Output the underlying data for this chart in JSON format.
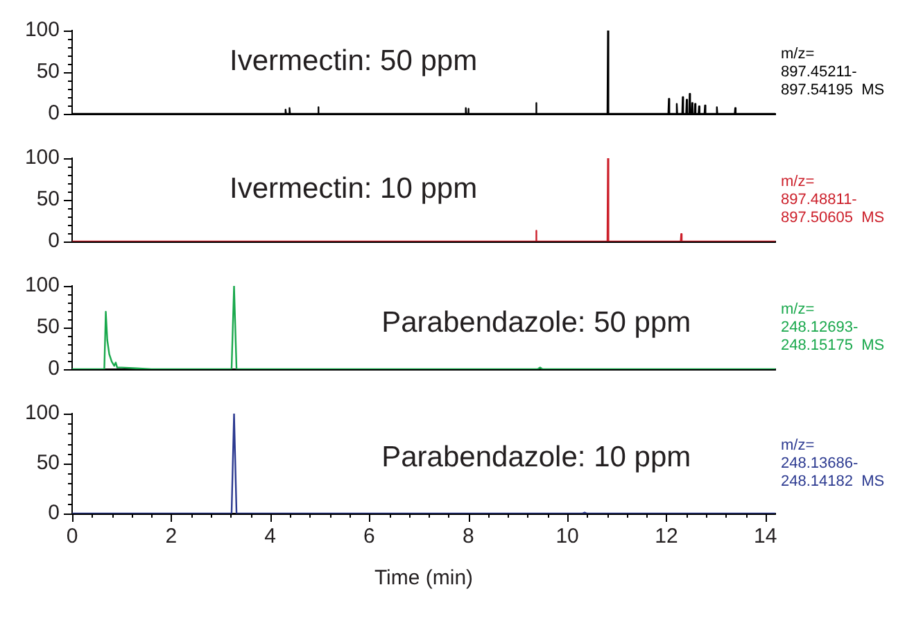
{
  "chart_data": [
    {
      "type": "line",
      "title": "Ivermectin: 50 ppm",
      "annotations": [
        "m/z=\n897.45211-\n897.54195  MS"
      ],
      "xlim": [
        0,
        14.2
      ],
      "ylim": [
        0,
        100
      ],
      "yticks": [
        0,
        {
          "value": 10,
          "label": null
        },
        {
          "value": 20,
          "label": null
        },
        {
          "value": 30,
          "label": null
        },
        {
          "value": 40,
          "label": null
        },
        50,
        {
          "value": 60,
          "label": null
        },
        {
          "value": 70,
          "label": null
        },
        {
          "value": 80,
          "label": null
        },
        {
          "value": 90,
          "label": null
        },
        100
      ],
      "tick_labels": "y",
      "grid": false,
      "legend": false,
      "marker": "none",
      "series": [
        {
          "color": "#000000",
          "x": [
            0,
            4.3,
            4.31,
            4.32,
            4.38,
            4.39,
            4.4,
            4.96,
            4.97,
            4.98,
            7.94,
            7.95,
            7.96,
            7.99,
            8.0,
            8.01,
            9.36,
            9.37,
            9.38,
            10.81,
            10.82,
            10.83,
            12.04,
            12.05,
            12.06,
            12.2,
            12.21,
            12.22,
            12.32,
            12.33,
            12.34,
            12.4,
            12.41,
            12.42,
            12.46,
            12.47,
            12.48,
            12.51,
            12.52,
            12.53,
            12.57,
            12.58,
            12.59,
            12.65,
            12.66,
            12.67,
            12.77,
            12.78,
            12.79,
            13.01,
            13.02,
            13.03,
            13.38,
            13.39,
            13.4,
            14.2
          ],
          "values": [
            0,
            0,
            5,
            0,
            0,
            7,
            0,
            0,
            8,
            0,
            0,
            7,
            0,
            0,
            6,
            0,
            0,
            13,
            0,
            0,
            100,
            0,
            0,
            18,
            0,
            0,
            12,
            0,
            0,
            20,
            0,
            0,
            17,
            0,
            0,
            24,
            0,
            0,
            13,
            0,
            0,
            12,
            0,
            0,
            9,
            0,
            0,
            10,
            0,
            0,
            8,
            0,
            0,
            7,
            0,
            0
          ]
        }
      ]
    },
    {
      "type": "line",
      "title": "Ivermectin: 10 ppm",
      "annotations": [
        "m/z=\n897.48811-\n897.50605  MS"
      ],
      "xlim": [
        0,
        14.2
      ],
      "ylim": [
        0,
        100
      ],
      "yticks": [
        0,
        {
          "value": 10,
          "label": null
        },
        {
          "value": 20,
          "label": null
        },
        {
          "value": 30,
          "label": null
        },
        {
          "value": 40,
          "label": null
        },
        50,
        {
          "value": 60,
          "label": null
        },
        {
          "value": 70,
          "label": null
        },
        {
          "value": 80,
          "label": null
        },
        {
          "value": 90,
          "label": null
        },
        100
      ],
      "tick_labels": "y",
      "grid": false,
      "legend": false,
      "marker": "none",
      "series": [
        {
          "color": "#cc1f2a",
          "x": [
            0,
            9.36,
            9.37,
            9.38,
            10.81,
            10.82,
            10.83,
            12.29,
            12.3,
            12.31,
            14.2
          ],
          "values": [
            0,
            0,
            13,
            0,
            0,
            100,
            0,
            0,
            9,
            0,
            0
          ]
        }
      ]
    },
    {
      "type": "line",
      "title": "Parabendazole: 50 ppm",
      "annotations": [
        "m/z=\n248.12693-\n248.15175  MS"
      ],
      "xlim": [
        0,
        14.2
      ],
      "ylim": [
        0,
        100
      ],
      "yticks": [
        0,
        {
          "value": 10,
          "label": null
        },
        {
          "value": 20,
          "label": null
        },
        {
          "value": 30,
          "label": null
        },
        {
          "value": 40,
          "label": null
        },
        50,
        {
          "value": 60,
          "label": null
        },
        {
          "value": 70,
          "label": null
        },
        {
          "value": 80,
          "label": null
        },
        {
          "value": 90,
          "label": null
        },
        100
      ],
      "tick_labels": "y",
      "grid": false,
      "legend": false,
      "marker": "none",
      "series": [
        {
          "color": "#19a84c",
          "x": [
            0,
            0.65,
            0.68,
            0.71,
            0.75,
            0.8,
            0.85,
            0.88,
            0.91,
            1.0,
            1.3,
            1.6,
            3.22,
            3.27,
            3.32,
            9.4,
            9.45,
            9.5,
            14.2
          ],
          "values": [
            0,
            0,
            69,
            35,
            18,
            9,
            4,
            8,
            2,
            2,
            1,
            0,
            0,
            100,
            0,
            0,
            2,
            0,
            0
          ]
        }
      ]
    },
    {
      "type": "line",
      "title": "Parabendazole: 10 ppm",
      "annotations": [
        "m/z=\n248.13686-\n248.14182  MS"
      ],
      "xlabel": "Time (min)",
      "xlim": [
        0,
        14.2
      ],
      "ylim": [
        0,
        100
      ],
      "yticks": [
        0,
        {
          "value": 10,
          "label": null
        },
        {
          "value": 20,
          "label": null
        },
        {
          "value": 30,
          "label": null
        },
        {
          "value": 40,
          "label": null
        },
        50,
        {
          "value": 60,
          "label": null
        },
        {
          "value": 70,
          "label": null
        },
        {
          "value": 80,
          "label": null
        },
        {
          "value": 90,
          "label": null
        },
        100
      ],
      "xticks": [
        0,
        {
          "value": 0.4,
          "label": null
        },
        {
          "value": 0.8,
          "label": null
        },
        {
          "value": 1.2,
          "label": null
        },
        {
          "value": 1.6,
          "label": null
        },
        2,
        {
          "value": 2.4,
          "label": null
        },
        {
          "value": 2.8,
          "label": null
        },
        {
          "value": 3.2,
          "label": null
        },
        {
          "value": 3.6,
          "label": null
        },
        4,
        {
          "value": 4.4,
          "label": null
        },
        {
          "value": 4.8,
          "label": null
        },
        {
          "value": 5.2,
          "label": null
        },
        {
          "value": 5.6,
          "label": null
        },
        6,
        {
          "value": 6.4,
          "label": null
        },
        {
          "value": 6.8,
          "label": null
        },
        {
          "value": 7.2,
          "label": null
        },
        {
          "value": 7.6,
          "label": null
        },
        8,
        {
          "value": 8.4,
          "label": null
        },
        {
          "value": 8.8,
          "label": null
        },
        {
          "value": 9.2,
          "label": null
        },
        {
          "value": 9.6,
          "label": null
        },
        10,
        {
          "value": 10.4,
          "label": null
        },
        {
          "value": 10.8,
          "label": null
        },
        {
          "value": 11.2,
          "label": null
        },
        {
          "value": 11.6,
          "label": null
        },
        12,
        {
          "value": 12.4,
          "label": null
        },
        {
          "value": 12.8,
          "label": null
        },
        {
          "value": 13.2,
          "label": null
        },
        {
          "value": 13.6,
          "label": null
        },
        14
      ],
      "grid": false,
      "legend": false,
      "marker": "none",
      "series": [
        {
          "color": "#2b3990",
          "x": [
            0,
            3.22,
            3.27,
            3.32,
            10.3,
            10.35,
            10.4,
            14.2
          ],
          "values": [
            0,
            0,
            100,
            0,
            0,
            1,
            0,
            0
          ]
        }
      ]
    }
  ]
}
